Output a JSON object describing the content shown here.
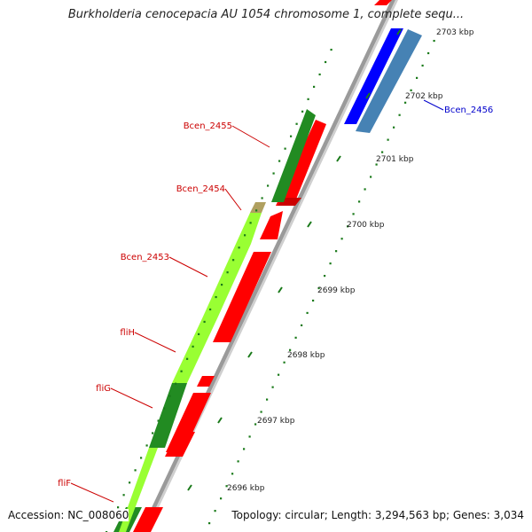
{
  "header": {
    "title": "Burkholderia cenocepacia AU 1054 chromosome 1, complete sequ..."
  },
  "footer": {
    "accession": "Accession: NC_008060",
    "summary": "Topology: circular; Length: 3,294,563 bp; Genes: 3,034"
  },
  "ticks": [
    {
      "label": "2703 kbp"
    },
    {
      "label": "2702 kbp"
    },
    {
      "label": "2701 kbp"
    },
    {
      "label": "2700 kbp"
    },
    {
      "label": "2699 kbp"
    },
    {
      "label": "2698 kbp"
    },
    {
      "label": "2697 kbp"
    },
    {
      "label": "2696 kbp"
    }
  ],
  "gene_labels": [
    {
      "label": "Bcen_2456",
      "color": "#0000cc"
    },
    {
      "label": "Bcen_2455",
      "color": "#cc0000"
    },
    {
      "label": "Bcen_2454",
      "color": "#cc0000"
    },
    {
      "label": "Bcen_2453",
      "color": "#cc0000"
    },
    {
      "label": "fliH",
      "color": "#cc0000"
    },
    {
      "label": "fliG",
      "color": "#cc0000"
    },
    {
      "label": "fliF",
      "color": "#cc0000"
    }
  ],
  "colors": {
    "cds_red": "#ff0000",
    "cds_blue": "#0000ff",
    "cds_steelblue": "#4682b4",
    "feature_darkgreen": "#228b22",
    "feature_lightgreen": "#99ff33",
    "backbone_gray": "#8c8c8c",
    "tick_green": "#1a7a1a"
  }
}
